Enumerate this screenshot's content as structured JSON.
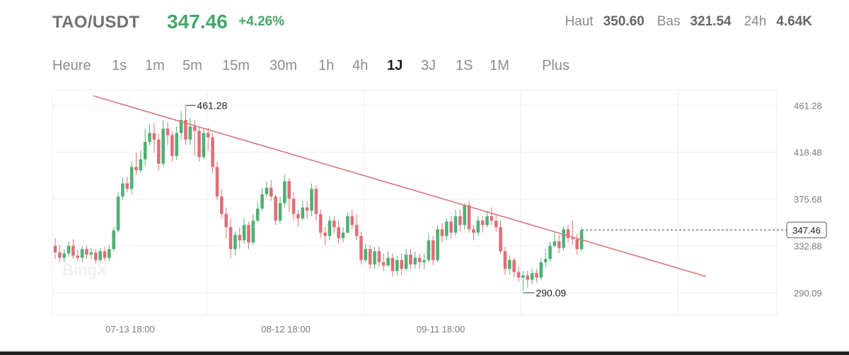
{
  "header": {
    "pair": "TAO/USDT",
    "price": "347.46",
    "change": "+4.26%",
    "stats": [
      {
        "label": "Haut",
        "value": "350.60"
      },
      {
        "label": "Bas",
        "value": "321.54"
      },
      {
        "label": "24h",
        "value": "4.64K"
      }
    ]
  },
  "intervals": {
    "items": [
      "Heure",
      "1s",
      "1m",
      "5m",
      "15m",
      "30m",
      "1h",
      "4h",
      "1J",
      "3J",
      "1S",
      "1M",
      "Plus"
    ],
    "active": "1J"
  },
  "chart": {
    "watermark": "BingX",
    "price_tag": "347.46",
    "high_marker": "461.28",
    "low_marker": "290.09",
    "colors": {
      "up": "#4fb074",
      "down": "#dd6f78",
      "trendline": "#d9777b",
      "grid": "#eeeeee",
      "text": "#7a7a7a"
    }
  },
  "chart_data": {
    "type": "candlestick",
    "y_ticks": [
      "461.28",
      "418.48",
      "375.68",
      "332.88",
      "290.09"
    ],
    "x_ticks": [
      "07-13 18:00",
      "08-12 18:00",
      "09-11 18:00"
    ],
    "ylim": [
      270.0,
      475.0
    ],
    "last_price": 347.46,
    "high": 461.28,
    "low": 290.09,
    "trendline": {
      "from": [
        0,
        470.0
      ],
      "to": [
        100,
        305.0
      ]
    },
    "candles": [
      [
        333,
        327,
        340,
        321
      ],
      [
        327,
        322,
        334,
        318
      ],
      [
        322,
        326,
        330,
        318
      ],
      [
        326,
        333,
        337,
        323
      ],
      [
        333,
        324,
        339,
        321
      ],
      [
        324,
        322,
        329,
        319
      ],
      [
        322,
        330,
        333,
        318
      ],
      [
        330,
        325,
        333,
        321
      ],
      [
        325,
        327,
        331,
        321
      ],
      [
        327,
        320,
        330,
        317
      ],
      [
        320,
        328,
        331,
        318
      ],
      [
        328,
        322,
        332,
        319
      ],
      [
        322,
        330,
        334,
        319
      ],
      [
        330,
        347,
        350,
        328
      ],
      [
        347,
        378,
        382,
        345
      ],
      [
        378,
        390,
        395,
        375
      ],
      [
        390,
        385,
        396,
        382
      ],
      [
        385,
        405,
        410,
        380
      ],
      [
        405,
        402,
        418,
        398
      ],
      [
        402,
        412,
        420,
        400
      ],
      [
        412,
        428,
        440,
        406
      ],
      [
        428,
        436,
        444,
        425
      ],
      [
        436,
        430,
        445,
        418
      ],
      [
        430,
        408,
        435,
        402
      ],
      [
        408,
        440,
        448,
        405
      ],
      [
        440,
        434,
        446,
        425
      ],
      [
        434,
        415,
        438,
        410
      ],
      [
        415,
        436,
        442,
        412
      ],
      [
        436,
        448,
        456,
        430
      ],
      [
        448,
        430,
        461,
        425
      ],
      [
        430,
        442,
        450,
        425
      ],
      [
        442,
        438,
        448,
        415
      ],
      [
        438,
        414,
        442,
        410
      ],
      [
        414,
        436,
        440,
        412
      ],
      [
        436,
        432,
        441,
        420
      ],
      [
        432,
        405,
        436,
        399
      ],
      [
        405,
        378,
        410,
        375
      ],
      [
        378,
        362,
        385,
        358
      ],
      [
        362,
        350,
        368,
        340
      ],
      [
        350,
        330,
        358,
        322
      ],
      [
        330,
        343,
        346,
        324
      ],
      [
        343,
        338,
        350,
        330
      ],
      [
        338,
        352,
        358,
        335
      ],
      [
        352,
        336,
        355,
        330
      ],
      [
        336,
        356,
        362,
        334
      ],
      [
        356,
        367,
        373,
        354
      ],
      [
        367,
        380,
        386,
        365
      ],
      [
        380,
        386,
        392,
        377
      ],
      [
        386,
        378,
        393,
        374
      ],
      [
        378,
        356,
        380,
        352
      ],
      [
        356,
        372,
        378,
        353
      ],
      [
        372,
        392,
        398,
        368
      ],
      [
        392,
        376,
        395,
        364
      ],
      [
        376,
        362,
        382,
        356
      ],
      [
        362,
        358,
        366,
        350
      ],
      [
        358,
        368,
        374,
        356
      ],
      [
        368,
        365,
        374,
        358
      ],
      [
        365,
        385,
        390,
        360
      ],
      [
        385,
        362,
        388,
        356
      ],
      [
        362,
        345,
        366,
        340
      ],
      [
        345,
        342,
        350,
        334
      ],
      [
        342,
        356,
        360,
        338
      ],
      [
        356,
        350,
        360,
        344
      ],
      [
        350,
        340,
        356,
        335
      ],
      [
        340,
        345,
        350,
        336
      ],
      [
        345,
        360,
        364,
        344
      ],
      [
        360,
        352,
        366,
        348
      ],
      [
        352,
        342,
        362,
        338
      ],
      [
        342,
        320,
        346,
        316
      ],
      [
        320,
        330,
        335,
        317
      ],
      [
        330,
        316,
        334,
        312
      ],
      [
        316,
        328,
        332,
        312
      ],
      [
        328,
        318,
        332,
        314
      ],
      [
        318,
        315,
        326,
        310
      ],
      [
        315,
        322,
        328,
        314
      ],
      [
        322,
        310,
        326,
        305
      ],
      [
        310,
        320,
        324,
        306
      ],
      [
        320,
        312,
        326,
        306
      ],
      [
        312,
        325,
        330,
        310
      ],
      [
        325,
        316,
        330,
        312
      ],
      [
        316,
        322,
        328,
        312
      ],
      [
        322,
        318,
        326,
        312
      ],
      [
        318,
        320,
        326,
        312
      ],
      [
        320,
        338,
        344,
        318
      ],
      [
        338,
        320,
        342,
        315
      ],
      [
        320,
        348,
        352,
        318
      ],
      [
        348,
        342,
        354,
        336
      ],
      [
        342,
        355,
        358,
        338
      ],
      [
        355,
        345,
        360,
        340
      ],
      [
        345,
        360,
        366,
        342
      ],
      [
        360,
        352,
        366,
        346
      ],
      [
        352,
        370,
        372,
        348
      ],
      [
        370,
        348,
        374,
        345
      ],
      [
        348,
        345,
        352,
        338
      ],
      [
        345,
        356,
        360,
        342
      ],
      [
        356,
        352,
        360,
        345
      ],
      [
        352,
        360,
        365,
        350
      ],
      [
        360,
        356,
        368,
        352
      ],
      [
        356,
        350,
        362,
        346
      ],
      [
        350,
        328,
        356,
        325
      ],
      [
        328,
        312,
        332,
        306
      ],
      [
        312,
        320,
        324,
        307
      ],
      [
        320,
        309,
        322,
        304
      ],
      [
        309,
        304,
        314,
        300
      ],
      [
        304,
        306,
        310,
        292
      ],
      [
        306,
        302,
        310,
        295
      ],
      [
        302,
        308,
        312,
        298
      ],
      [
        308,
        304,
        312,
        299
      ],
      [
        304,
        318,
        322,
        302
      ],
      [
        318,
        321,
        330,
        314
      ],
      [
        321,
        333,
        337,
        318
      ],
      [
        333,
        337,
        345,
        332
      ],
      [
        337,
        331,
        343,
        326
      ],
      [
        331,
        348,
        351,
        329
      ],
      [
        348,
        340,
        352,
        336
      ],
      [
        340,
        339,
        356,
        334
      ],
      [
        339,
        330,
        344,
        325
      ],
      [
        330,
        347,
        350,
        328
      ]
    ]
  }
}
